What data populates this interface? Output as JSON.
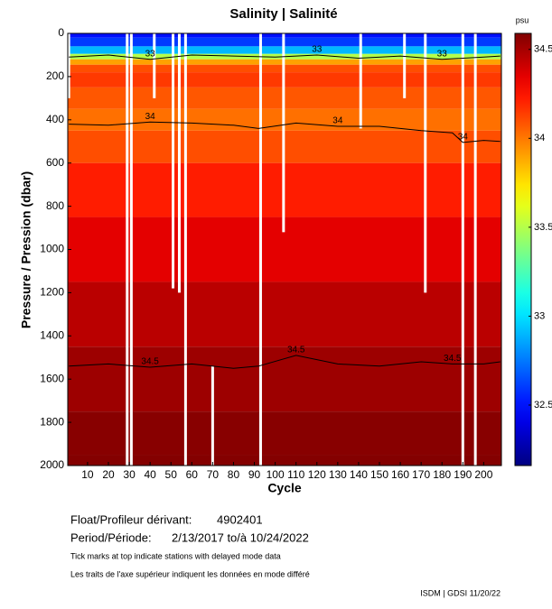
{
  "chart_data": {
    "type": "heatmap",
    "title": "Salinity | Salinité",
    "xlabel": "Cycle",
    "ylabel": "Pressure / Pression (dbar)",
    "xlim": [
      0.5,
      208.5
    ],
    "xticks": [
      10,
      20,
      30,
      40,
      50,
      60,
      70,
      80,
      90,
      100,
      110,
      120,
      130,
      140,
      150,
      160,
      170,
      180,
      190,
      200
    ],
    "ylim": [
      0,
      2000
    ],
    "yticks": [
      0,
      200,
      400,
      600,
      800,
      1000,
      1200,
      1400,
      1600,
      1800,
      2000
    ],
    "y_inverted": true,
    "depths": [
      0,
      40,
      80,
      110,
      130,
      160,
      200,
      300,
      400,
      500,
      700,
      1000,
      1300,
      1600,
      1900,
      2000
    ],
    "values": [
      32.5,
      32.6,
      32.9,
      33.5,
      33.9,
      34.1,
      34.15,
      34.08,
      34.02,
      34.1,
      34.22,
      34.35,
      34.45,
      34.52,
      34.57,
      34.58
    ],
    "clim": [
      32.16,
      34.59
    ],
    "cticks": [
      32.5,
      33,
      33.5,
      34,
      34.5
    ],
    "clabel": "psu",
    "gaps": [
      {
        "cycle": 1,
        "from": 0,
        "to": 300
      },
      {
        "cycle": 29,
        "from": 0,
        "to": 2000
      },
      {
        "cycle": 31,
        "from": 0,
        "to": 2000
      },
      {
        "cycle": 42,
        "from": 0,
        "to": 300
      },
      {
        "cycle": 51,
        "from": 0,
        "to": 1180
      },
      {
        "cycle": 54,
        "from": 0,
        "to": 1200
      },
      {
        "cycle": 57,
        "from": 0,
        "to": 2000
      },
      {
        "cycle": 70,
        "from": 1540,
        "to": 2000
      },
      {
        "cycle": 93,
        "from": 0,
        "to": 2000
      },
      {
        "cycle": 104,
        "from": 0,
        "to": 920
      },
      {
        "cycle": 141,
        "from": 0,
        "to": 440
      },
      {
        "cycle": 162,
        "from": 0,
        "to": 300
      },
      {
        "cycle": 172,
        "from": 0,
        "to": 1200
      },
      {
        "cycle": 190,
        "from": 0,
        "to": 2000
      },
      {
        "cycle": 196,
        "from": 0,
        "to": 2000
      }
    ],
    "contours": [
      {
        "level": 34,
        "x": [
          1,
          20,
          40,
          60,
          80,
          92,
          110,
          130,
          150,
          170,
          185,
          190,
          200,
          208
        ],
        "depths": [
          420,
          425,
          410,
          415,
          425,
          440,
          415,
          430,
          430,
          450,
          460,
          505,
          495,
          500
        ]
      },
      {
        "level": 34.5,
        "x": [
          1,
          20,
          40,
          60,
          80,
          92,
          110,
          130,
          150,
          170,
          185,
          200,
          208
        ],
        "depths": [
          1540,
          1530,
          1545,
          1530,
          1550,
          1540,
          1490,
          1530,
          1540,
          1520,
          1530,
          1530,
          1520
        ]
      },
      {
        "level": 33,
        "x": [
          1,
          20,
          40,
          60,
          80,
          100,
          120,
          140,
          160,
          180,
          200,
          208
        ],
        "depths": [
          110,
          100,
          120,
          100,
          105,
          110,
          100,
          115,
          105,
          120,
          110,
          105
        ]
      }
    ],
    "footer": {
      "float_label": "Float/Profileur dérivant:",
      "float_id": "4902401",
      "period_label": "Period/Période:",
      "period": "2/13/2017  to/à  10/24/2022",
      "note_en": "Tick marks at top indicate stations with delayed mode data",
      "note_fr": "Les traits de l'axe supérieur indiquent les données en mode différé",
      "credit": "ISDM | GDSI  11/20/22"
    }
  }
}
